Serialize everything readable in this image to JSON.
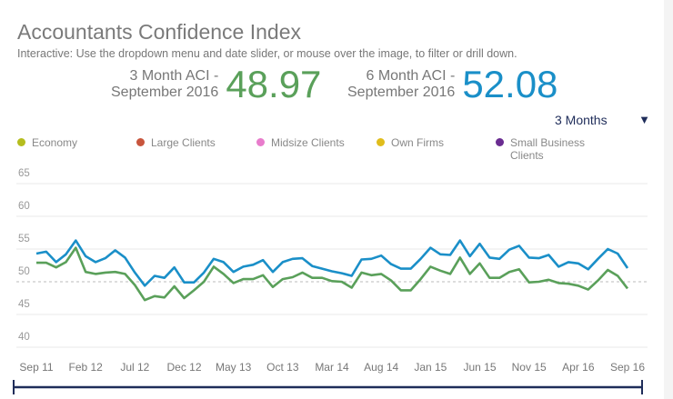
{
  "header": {
    "title": "Accountants Confidence Index",
    "subtitle": "Interactive: Use the dropdown menu and date slider, or mouse over the image, to filter or drill down."
  },
  "kpis": [
    {
      "label_line1": "3 Month ACI -",
      "label_line2": "September 2016",
      "value": "48.97",
      "color": "#5aa05a"
    },
    {
      "label_line1": "6 Month ACI -",
      "label_line2": "September 2016",
      "value": "52.08",
      "color": "#1a8fc8"
    }
  ],
  "dropdown": {
    "selected": "3 Months",
    "icon": "triangle-down-icon"
  },
  "legend": [
    {
      "label": "Economy",
      "color": "#b5bd1e"
    },
    {
      "label": "Large Clients",
      "color": "#c8553d"
    },
    {
      "label": "Midsize Clients",
      "color": "#e87ccc"
    },
    {
      "label": "Own Firms",
      "color": "#e0bd1c"
    },
    {
      "label": "Small Business Clients",
      "color": "#6a2c91"
    }
  ],
  "chart_data": {
    "type": "line",
    "ylim": [
      40,
      65
    ],
    "yticks": [
      "65",
      "60",
      "55",
      "50",
      "45",
      "40"
    ],
    "reference_line": 50,
    "grid": true,
    "x_start": "Sep 11",
    "x_end": "Sep 16",
    "xtick_labels": [
      "Sep 11",
      "Feb 12",
      "Jul 12",
      "Dec 12",
      "May 13",
      "Oct 13",
      "Mar 14",
      "Aug 14",
      "Jan 15",
      "Jun 15",
      "Nov 15",
      "Apr 16",
      "Sep 16"
    ],
    "series": [
      {
        "color": "#1a8fc8",
        "values": [
          54.3,
          54.6,
          53.0,
          54.2,
          56.3,
          53.9,
          53.0,
          53.6,
          54.8,
          53.7,
          51.4,
          49.4,
          50.9,
          50.6,
          52.2,
          49.9,
          49.9,
          51.4,
          53.5,
          53.0,
          51.5,
          52.3,
          52.6,
          53.3,
          51.5,
          53.0,
          53.5,
          53.6,
          52.4,
          52.0,
          51.6,
          51.3,
          50.9,
          53.4,
          53.5,
          54.0,
          52.7,
          52.0,
          52.0,
          53.5,
          55.2,
          54.2,
          54.1,
          56.3,
          53.9,
          55.8,
          53.7,
          53.5,
          54.9,
          55.5,
          53.7,
          53.6,
          54.1,
          52.3,
          53.0,
          52.8,
          51.9,
          53.5,
          55.0,
          54.3,
          52.08
        ]
      },
      {
        "color": "#5aa05a",
        "values": [
          52.9,
          52.9,
          52.2,
          53.0,
          55.2,
          51.5,
          51.2,
          51.4,
          51.5,
          51.2,
          49.5,
          47.2,
          47.8,
          47.6,
          49.3,
          47.5,
          48.7,
          50.0,
          52.3,
          51.2,
          49.8,
          50.4,
          50.4,
          51.0,
          49.2,
          50.4,
          50.7,
          51.4,
          50.6,
          50.6,
          50.1,
          50.0,
          49.1,
          51.4,
          51.0,
          51.2,
          50.2,
          48.7,
          48.7,
          50.4,
          52.3,
          51.7,
          51.2,
          53.7,
          51.2,
          52.8,
          50.6,
          50.6,
          51.5,
          51.9,
          49.9,
          50.0,
          50.3,
          49.8,
          49.7,
          49.4,
          48.8,
          50.2,
          51.8,
          50.9,
          48.97
        ]
      }
    ]
  },
  "slider": {
    "color": "#1f2d5a"
  }
}
